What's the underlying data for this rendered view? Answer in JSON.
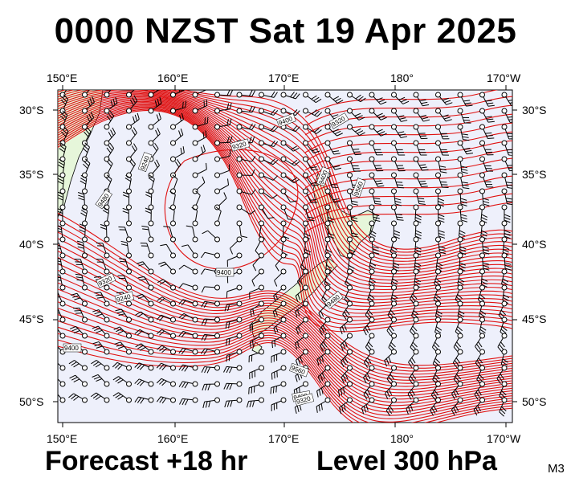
{
  "title": "0000 NZST Sat 19 Apr 2025",
  "footer": {
    "forecast": "Forecast +18 hr",
    "level": "Level 300 hPa",
    "tag": "M3"
  },
  "axes": {
    "top_lon": [
      "150°E",
      "160°E",
      "170°E",
      "180°",
      "170°W"
    ],
    "bottom_lon": [
      "150°E",
      "160°E",
      "170°E",
      "180°",
      "170°W"
    ],
    "left_lat": [
      "30°S",
      "35°S",
      "40°S",
      "45°S",
      "50°S"
    ],
    "right_lat": [
      "30°S",
      "35°S",
      "40°S",
      "45°S",
      "50°S"
    ]
  },
  "contour_labels": [
    "9400",
    "9320",
    "9240",
    "9320",
    "9400",
    "9560",
    "9480",
    "9400",
    "9320",
    "9240",
    "9400",
    "9480",
    "9560",
    "9400",
    "9320"
  ],
  "colors": {
    "contour": "#e01010",
    "background_region": "#eef0fb",
    "land": "#e6f6da",
    "wind": "#000000"
  }
}
